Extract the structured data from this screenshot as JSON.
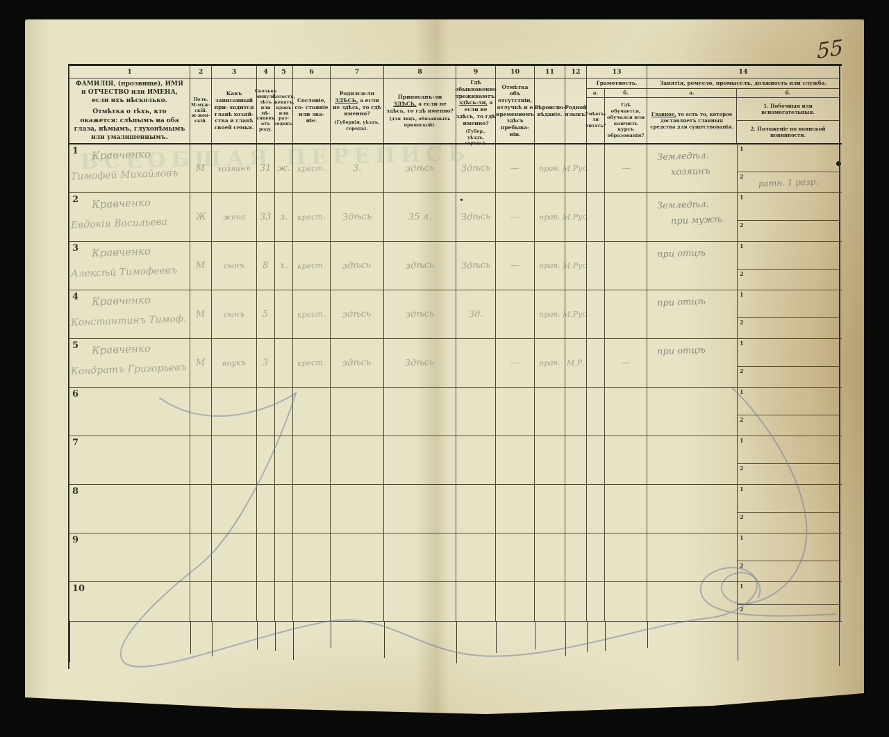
{
  "page": {
    "number": "55"
  },
  "watermark": "ВСЕОБЩАЯ ПЕРЕПИСЬ",
  "table": {
    "sub1": "1",
    "sub2": "2",
    "headers": {
      "c1": {
        "num": "1",
        "p1": "ФАМИЛІЯ, (прозвище), ИМЯ и ОТЧЕСТВО или ИМЕНА, если ихъ нѣсколько.",
        "p2": "Отмѣтка о тѣхъ, кто окажется: слѣпымъ на оба глаза, нѣмымъ, глухонѣмымъ или умалишеннымъ."
      },
      "c2": {
        "num": "2",
        "lines": [
          "Полъ.",
          "М-муж-",
          "скій.",
          "ж-жен-",
          "скій."
        ]
      },
      "c3": {
        "num": "3",
        "text": "Какъ записанный при- ходится главѣ хозяй- ства и главѣ своей семьи."
      },
      "c4": {
        "num": "4",
        "lines": [
          "Сколько",
          "минуло",
          "лѣтъ",
          "или мѣ-",
          "сяцевъ",
          "отъ роду."
        ]
      },
      "c5": {
        "num": "5",
        "lines": [
          "Холостъ,",
          "женатъ,",
          "вдовъ",
          "или раз-",
          "веденъ."
        ]
      },
      "c6": {
        "num": "6",
        "text": "Сословіе, со- стояніе или зва- ніе."
      },
      "c7": {
        "num": "7",
        "lead": "Родился-ли",
        "u": "ЗДѢСЬ,",
        "rest": "а если не здѣсь, то гдѣ именно?",
        "note": "(Губернія, уѣздъ, городъ)."
      },
      "c8": {
        "num": "8",
        "lead": "Приписанъ-ли",
        "u": "ЗДѢСЬ,",
        "rest": "а если не здѣсь, то гдѣ именно?",
        "note": "(для лицъ, обязанныхъ припиской)."
      },
      "c9": {
        "num": "9",
        "lead": "Гдѣ обыкновенно проживаютъ:",
        "u": "здѣсь-ли,",
        "rest": "а если не здѣсь, то гдѣ именно?",
        "note": "(Губер., уѣздъ, городъ)."
      },
      "c10": {
        "num": "10",
        "text": "Отмѣтка объ отсутствіи, отлучкѣ и о временномъ здѣсь пребыва- ніи."
      },
      "c11": {
        "num": "11",
        "text": "Вѣроиспо- вѣданіе."
      },
      "c12": {
        "num": "12",
        "text": "Родной языкъ."
      },
      "c13": {
        "num": "13",
        "title": "Грамотность.",
        "a_label": "а.",
        "b_label": "б.",
        "a_text": "Умѣетъ- ли читать?",
        "b_text": "Гдѣ обучается, обучался или кончилъ курсъ образованія?"
      },
      "c14": {
        "num": "14",
        "title": "Занятія, ремесло, промыселъ, должность или служба.",
        "a_label": "а.",
        "b_label": "б.",
        "a_lead": "Главное,",
        "a_rest": "то есть то, которое доставляетъ главныя средства для существованія.",
        "b1": "1. Побочныя или вспомогательныя.",
        "b2": "2. Положеніе по воинской повинности."
      }
    },
    "rows": [
      {
        "num": "1",
        "name1": "Кравченко",
        "name2": "Тимофей Михайловъ",
        "sex": "М",
        "relation": "хозяинъ",
        "age": "31",
        "marital": "ж.",
        "estate": "крест.",
        "born": "З.",
        "registered": "здѣсь",
        "residence": "Здѣсь",
        "absence": "—",
        "religion": "прав.",
        "language": "М.Рус.",
        "read": "",
        "edu": "—",
        "occ1": "Земледѣл.",
        "occ2": "хозяинъ",
        "side1": "",
        "side2": "ратн. 1 разр."
      },
      {
        "num": "2",
        "name1": "Кравченко",
        "name2": "Евдокія Васильева",
        "sex": "Ж",
        "relation": "жена",
        "age": "33",
        "marital": "з.",
        "estate": "крест.",
        "born": "Здѣсь",
        "registered": "35 л.",
        "residence": "Здѣсь",
        "absence": "—",
        "religion": "прав.",
        "language": "М.Рус.",
        "read": "",
        "edu": "",
        "occ1": "Земледѣл.",
        "occ2": "при мужѣ",
        "side1": "",
        "side2": ""
      },
      {
        "num": "3",
        "name1": "Кравченко",
        "name2": "Алексѣй Тимофеевъ",
        "sex": "М",
        "relation": "сынъ",
        "age": "8",
        "marital": "х.",
        "estate": "крест.",
        "born": "здѣсь",
        "registered": "здѣсь",
        "residence": "Здѣсь",
        "absence": "—",
        "religion": "прав.",
        "language": "М.Рус.",
        "read": "",
        "edu": "",
        "occ1": "при отцѣ",
        "occ2": "",
        "side1": "",
        "side2": ""
      },
      {
        "num": "4",
        "name1": "Кравченко",
        "name2": "Константинъ Тимоф.",
        "sex": "М",
        "relation": "сынъ",
        "age": "5",
        "marital": "",
        "estate": "крест.",
        "born": "здѣсь",
        "registered": "здѣсь",
        "residence": "Зд.",
        "absence": "",
        "religion": "прав.",
        "language": "М.Рус.",
        "read": "",
        "edu": "",
        "occ1": "при отцѣ",
        "occ2": "",
        "side1": "",
        "side2": ""
      },
      {
        "num": "5",
        "name1": "Кравченко",
        "name2": "Кондратъ Григорьевъ",
        "sex": "М",
        "relation": "внукъ",
        "age": "3",
        "marital": "",
        "estate": "крест.",
        "born": "здѣсь",
        "registered": "Здѣсь",
        "residence": "",
        "absence": "—",
        "religion": "прав.",
        "language": "М.Р.",
        "read": "",
        "edu": "—",
        "occ1": "при отцѣ",
        "occ2": "",
        "side1": "",
        "side2": ""
      },
      {
        "num": "6",
        "name1": "",
        "name2": "",
        "sex": "",
        "relation": "",
        "age": "",
        "marital": "",
        "estate": "",
        "born": "",
        "registered": "",
        "residence": "",
        "absence": "",
        "religion": "",
        "language": "",
        "read": "",
        "edu": "",
        "occ1": "",
        "occ2": "",
        "side1": "",
        "side2": ""
      },
      {
        "num": "7",
        "name1": "",
        "name2": "",
        "sex": "",
        "relation": "",
        "age": "",
        "marital": "",
        "estate": "",
        "born": "",
        "registered": "",
        "residence": "",
        "absence": "",
        "religion": "",
        "language": "",
        "read": "",
        "edu": "",
        "occ1": "",
        "occ2": "",
        "side1": "",
        "side2": ""
      },
      {
        "num": "8",
        "name1": "",
        "name2": "",
        "sex": "",
        "relation": "",
        "age": "",
        "marital": "",
        "estate": "",
        "born": "",
        "registered": "",
        "residence": "",
        "absence": "",
        "religion": "",
        "language": "",
        "read": "",
        "edu": "",
        "occ1": "",
        "occ2": "",
        "side1": "",
        "side2": ""
      },
      {
        "num": "9",
        "name1": "",
        "name2": "",
        "sex": "",
        "relation": "",
        "age": "",
        "marital": "",
        "estate": "",
        "born": "",
        "registered": "",
        "residence": "",
        "absence": "",
        "religion": "",
        "language": "",
        "read": "",
        "edu": "",
        "occ1": "",
        "occ2": "",
        "side1": "",
        "side2": ""
      },
      {
        "num": "10",
        "name1": "",
        "name2": "",
        "sex": "",
        "relation": "",
        "age": "",
        "marital": "",
        "estate": "",
        "born": "",
        "registered": "",
        "residence": "",
        "absence": "",
        "religion": "",
        "language": "",
        "read": "",
        "edu": "",
        "occ1": "",
        "occ2": "",
        "side1": "",
        "side2": ""
      }
    ]
  }
}
